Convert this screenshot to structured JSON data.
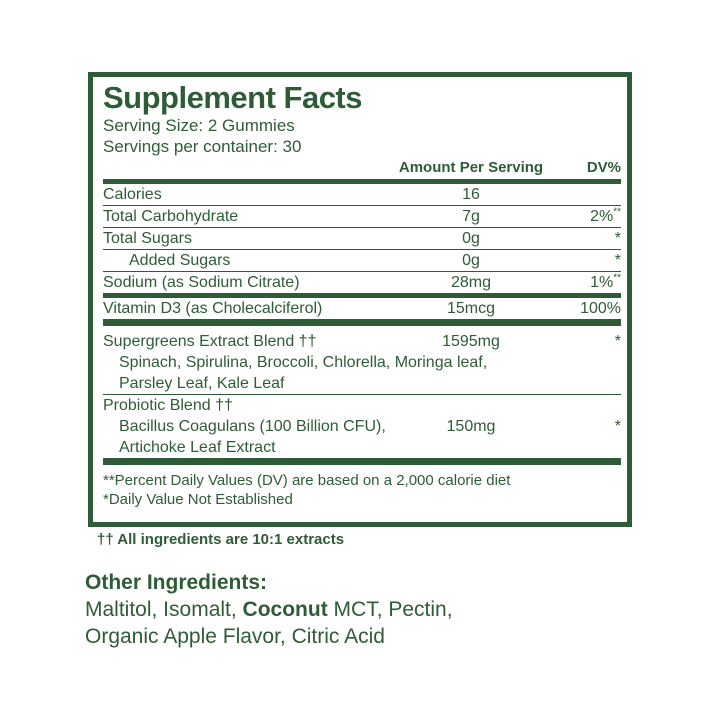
{
  "colors": {
    "green": "#2e5c37"
  },
  "label": {
    "title": "Supplement Facts",
    "serving_size": "Serving Size: 2 Gummies",
    "servings_per_container": "Servings per container: 30",
    "columns": {
      "amount": "Amount Per Serving",
      "dv": "DV%"
    },
    "rows": [
      {
        "sep": "thin",
        "lines": [
          {
            "text": "Calories",
            "amount": "16",
            "dv": ""
          }
        ]
      },
      {
        "sep": "thin",
        "lines": [
          {
            "text": "Total Carbohydrate",
            "amount": "7g",
            "dv": "2%",
            "dv_sup": "**"
          }
        ]
      },
      {
        "sep": "thin",
        "lines": [
          {
            "text": "Total Sugars",
            "amount": "0g",
            "dv": "*"
          }
        ]
      },
      {
        "sep": "thin",
        "lines": [
          {
            "text": "Added Sugars",
            "indent": 2,
            "amount": "0g",
            "dv": "*"
          }
        ]
      },
      {
        "sep": "thick",
        "lines": [
          {
            "text": "Sodium (as Sodium Citrate)",
            "amount": "28mg",
            "dv": "1%",
            "dv_sup": "**"
          }
        ]
      },
      {
        "sep": "xthick",
        "lines": [
          {
            "text": "Vitamin D3 (as Cholecalciferol)",
            "amount": "15mcg",
            "dv": "100%"
          }
        ]
      },
      {
        "sep": "thin",
        "pad_top": true,
        "lines": [
          {
            "text": "Supergreens Extract Blend ††",
            "amount": "1595mg",
            "dv": "*"
          },
          {
            "text": "Spinach, Spirulina, Broccoli, Chlorella, Moringa leaf,",
            "indent": 1
          },
          {
            "text": "Parsley Leaf, Kale Leaf",
            "indent": 1
          }
        ]
      },
      {
        "sep": "xthick",
        "lines": [
          {
            "text": "Probiotic Blend ††"
          },
          {
            "text": "Bacillus Coagulans (100 Billion CFU),",
            "indent": 1,
            "amount": "150mg",
            "dv": "*"
          },
          {
            "text": "Artichoke Leaf Extract",
            "indent": 1
          }
        ]
      }
    ],
    "footnotes": [
      "**Percent Daily Values (DV) are based on a 2,000 calorie diet",
      "*Daily Value Not Established"
    ]
  },
  "notes": {
    "extract_note": "†† All ingredients are 10:1 extracts"
  },
  "other_ingredients": {
    "heading": "Other Ingredients:",
    "lines": [
      [
        {
          "t": "Maltitol, Isomalt, "
        },
        {
          "t": "Coconut",
          "bold": true
        },
        {
          "t": " MCT, Pectin,"
        }
      ],
      [
        {
          "t": "Organic Apple Flavor, Citric Acid"
        }
      ]
    ]
  }
}
